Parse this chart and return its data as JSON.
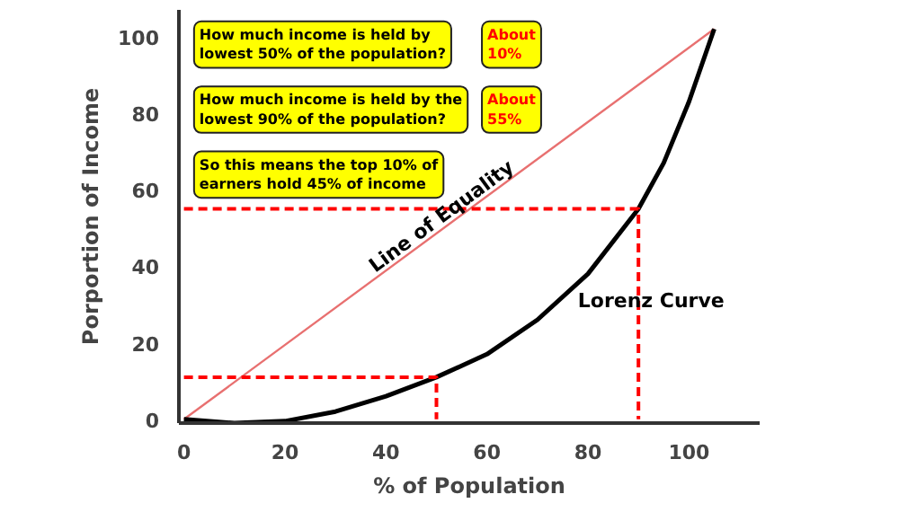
{
  "chart_data": {
    "type": "line",
    "xlabel": "% of Population",
    "ylabel": "Porportion of Income",
    "xlim": [
      -1,
      114
    ],
    "ylim": [
      -1,
      107
    ],
    "xticks": [
      0,
      20,
      40,
      60,
      80,
      100
    ],
    "yticks": [
      0,
      20,
      40,
      60,
      80,
      100
    ],
    "grid": false,
    "marker": "none",
    "series": [
      {
        "color": "#e87070",
        "x": [
          0,
          105
        ],
        "values": [
          0,
          102
        ],
        "line_style": "solid"
      },
      {
        "color": "#000000",
        "x": [
          0,
          10,
          20,
          30,
          40,
          50,
          60,
          70,
          80,
          90,
          95,
          100,
          105
        ],
        "values": [
          0,
          -1,
          -0.5,
          2,
          6,
          11,
          17,
          26,
          38,
          55,
          67,
          83,
          102
        ],
        "line_style": "solid"
      },
      {
        "color": "#ff0000",
        "x": [
          0,
          50,
          50
        ],
        "values": [
          11,
          11,
          0
        ],
        "line_style": "dashed"
      },
      {
        "color": "#ff0000",
        "x": [
          0,
          90,
          90
        ],
        "values": [
          55,
          55,
          0
        ],
        "line_style": "dashed"
      }
    ],
    "annotations": [
      "How much income is held by\nlowest 50% of the population?",
      "About\n10%",
      "How much income is held by the\nlowest 90% of the population?",
      "About\n55%",
      "So this means the top 10% of\nearners hold 45% of income",
      {
        "text": "Line of Equality",
        "x": 51,
        "y": 53
      },
      "Lorenz Curve"
    ]
  }
}
